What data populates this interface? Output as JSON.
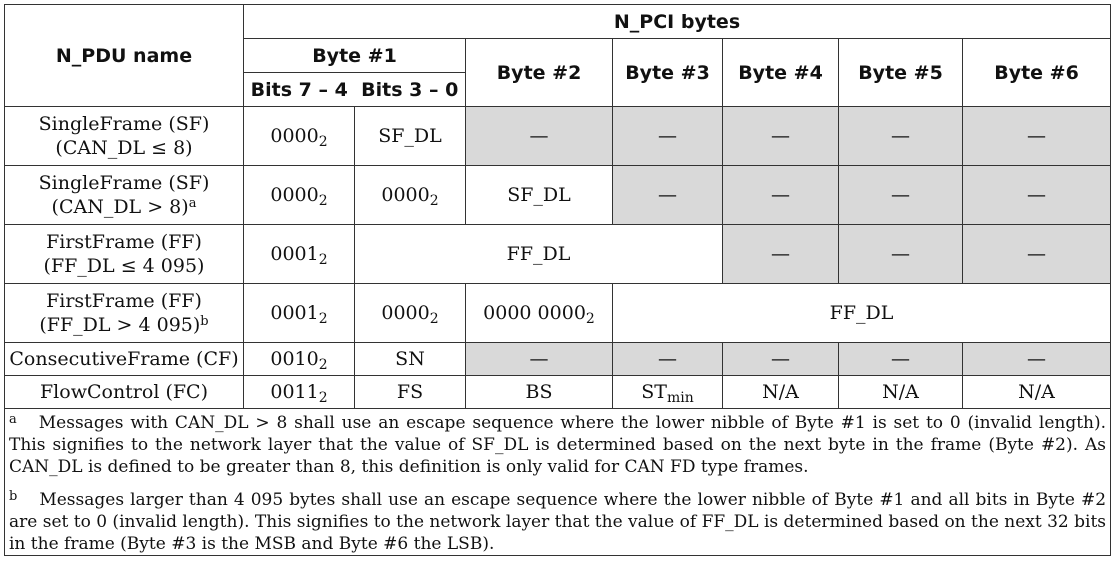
{
  "header": {
    "npdu_name": "N_PDU name",
    "npci_bytes": "N_PCI bytes",
    "byte1": "Byte #1",
    "bits_hi": "Bits 7 – 4",
    "bits_lo": "Bits 3 – 0",
    "byte2": "Byte #2",
    "byte3": "Byte #3",
    "byte4": "Byte #4",
    "byte5": "Byte #5",
    "byte6": "Byte #6"
  },
  "rows": {
    "sf_small": {
      "name_line1": "SingleFrame (SF)",
      "name_line2": "(CAN_DL ≤ 8)",
      "b1_hi": "0000",
      "b1_hi_sub": "2",
      "b1_lo": "SF_DL",
      "b2": "—",
      "b3": "—",
      "b4": "—",
      "b5": "—",
      "b6": "—"
    },
    "sf_large": {
      "name_line1": "SingleFrame (SF)",
      "name_line2": "(CAN_DL > 8)",
      "footnote": "a",
      "b1_hi": "0000",
      "b1_hi_sub": "2",
      "b1_lo": "0000",
      "b1_lo_sub": "2",
      "b2": "SF_DL",
      "b3": "—",
      "b4": "—",
      "b5": "—",
      "b6": "—"
    },
    "ff_small": {
      "name_line1": "FirstFrame (FF)",
      "name_line2": "(FF_DL ≤ 4 095)",
      "b1_hi": "0001",
      "b1_hi_sub": "2",
      "ff_dl": "FF_DL",
      "b4": "—",
      "b5": "—",
      "b6": "—"
    },
    "ff_large": {
      "name_line1": "FirstFrame (FF)",
      "name_line2": "(FF_DL > 4 095)",
      "footnote": "b",
      "b1_hi": "0001",
      "b1_hi_sub": "2",
      "b1_lo": "0000",
      "b1_lo_sub": "2",
      "b2": "0000 0000",
      "b2_sub": "2",
      "ff_dl": "FF_DL"
    },
    "cf": {
      "name": "ConsecutiveFrame (CF)",
      "b1_hi": "0010",
      "b1_hi_sub": "2",
      "b1_lo": "SN",
      "b2": "—",
      "b3": "—",
      "b4": "—",
      "b5": "—",
      "b6": "—"
    },
    "fc": {
      "name": "FlowControl (FC)",
      "b1_hi": "0011",
      "b1_hi_sub": "2",
      "b1_lo": "FS",
      "b2": "BS",
      "b3": "ST",
      "b3_sub": "min",
      "b4": "N/A",
      "b5": "N/A",
      "b6": "N/A"
    }
  },
  "notes": {
    "a_mark": "a",
    "a_text": "Messages with CAN_DL > 8 shall use an escape sequence where the lower nibble of Byte #1 is set to 0 (invalid length). This signifies to the network layer that the value of SF_DL is determined based on the next byte in the frame (Byte #2). As CAN_DL is defined to be greater than 8, this definition is only valid for CAN FD type frames.",
    "b_mark": "b",
    "b_text": "Messages larger than 4 095 bytes shall use an escape sequence where the lower nibble of Byte #1 and all bits in Byte #2 are set to 0 (invalid length). This signifies to the network layer that the value of FF_DL is determined based on the next 32 bits in the frame (Byte #3 is the MSB and Byte #6 the LSB)."
  }
}
